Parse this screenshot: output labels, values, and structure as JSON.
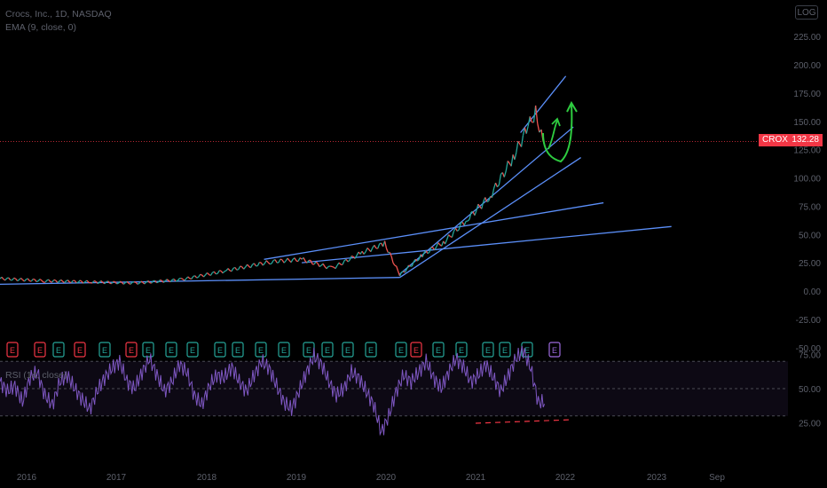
{
  "header": {
    "title": "Crocs, Inc., 1D, NASDAQ",
    "ema_label": "EMA (9, close, 0)",
    "log_button": "LOG"
  },
  "price_badge": {
    "symbol": "CROX",
    "value": "132.28"
  },
  "rsi": {
    "title": "RSI (14, close)"
  },
  "colors": {
    "background": "#000000",
    "line_blue": "#5b8ff9",
    "arrow_green": "#2ecc40",
    "rsi_purple": "#7e57c2",
    "price_red": "#f23645",
    "earnings_teal": "#26a69a"
  },
  "chart_data": [
    {
      "type": "line",
      "title": "Crocs, Inc., 1D, NASDAQ",
      "series_names": [
        "CROX"
      ],
      "ylim": [
        -50,
        235
      ],
      "y_ticks": [
        "225.00",
        "200.00",
        "175.00",
        "150.00",
        "125.00",
        "100.00",
        "75.00",
        "50.00",
        "25.00",
        "0.00",
        "-25.00",
        "-50.00"
      ],
      "x_ticks": [
        "2016",
        "2017",
        "2018",
        "2019",
        "2020",
        "2021",
        "2022",
        "2023",
        "Sep"
      ],
      "current_price": 132.28,
      "price_points": [
        {
          "x": "2015-10",
          "y": 11
        },
        {
          "x": "2016-04",
          "y": 9
        },
        {
          "x": "2016-10",
          "y": 8
        },
        {
          "x": "2017-04",
          "y": 7
        },
        {
          "x": "2017-10",
          "y": 10
        },
        {
          "x": "2018-04",
          "y": 18
        },
        {
          "x": "2018-10",
          "y": 26
        },
        {
          "x": "2019-02",
          "y": 28
        },
        {
          "x": "2019-06",
          "y": 20
        },
        {
          "x": "2019-10",
          "y": 34
        },
        {
          "x": "2020-01",
          "y": 42
        },
        {
          "x": "2020-03",
          "y": 14
        },
        {
          "x": "2020-06",
          "y": 32
        },
        {
          "x": "2020-09",
          "y": 44
        },
        {
          "x": "2020-12",
          "y": 64
        },
        {
          "x": "2021-03",
          "y": 84
        },
        {
          "x": "2021-06",
          "y": 118
        },
        {
          "x": "2021-08",
          "y": 145
        },
        {
          "x": "2021-09",
          "y": 158
        },
        {
          "x": "2021-10",
          "y": 132
        }
      ],
      "trendlines": [
        {
          "x": [
            "2015-10",
            "2020-03"
          ],
          "y": [
            6,
            12
          ]
        },
        {
          "x": [
            "2020-03",
            "2022-03"
          ],
          "y": [
            12,
            118
          ]
        },
        {
          "x": [
            "2020-03",
            "2022-02"
          ],
          "y": [
            15,
            145
          ]
        },
        {
          "x": [
            "2021-07",
            "2022-01"
          ],
          "y": [
            140,
            190
          ]
        },
        {
          "x": [
            "2018-09",
            "2022-06"
          ],
          "y": [
            28,
            78
          ]
        },
        {
          "x": [
            "2019-02",
            "2023-03"
          ],
          "y": [
            25,
            57
          ]
        }
      ],
      "earnings_markers": 28
    },
    {
      "type": "line",
      "title": "RSI (14, close)",
      "ylim": [
        10,
        85
      ],
      "y_ticks": [
        "75.00",
        "50.00",
        "25.00"
      ],
      "bands": [
        30,
        70
      ],
      "series": [
        {
          "name": "RSI",
          "values": [
            55,
            48,
            52,
            40,
            58,
            62,
            45,
            38,
            55,
            60,
            50,
            42,
            35,
            48,
            58,
            65,
            70,
            55,
            50,
            62,
            72,
            60,
            48,
            55,
            68,
            62,
            45,
            38,
            52,
            60,
            58,
            66,
            55,
            48,
            60,
            70,
            65,
            52,
            40,
            35,
            48,
            62,
            74,
            68,
            55,
            45,
            50,
            62,
            58,
            48,
            38,
            18,
            30,
            48,
            60,
            55,
            62,
            70,
            58,
            50,
            62,
            72,
            66,
            55,
            60,
            68,
            58,
            48,
            60,
            72,
            78,
            65,
            40
          ]
        }
      ]
    }
  ]
}
